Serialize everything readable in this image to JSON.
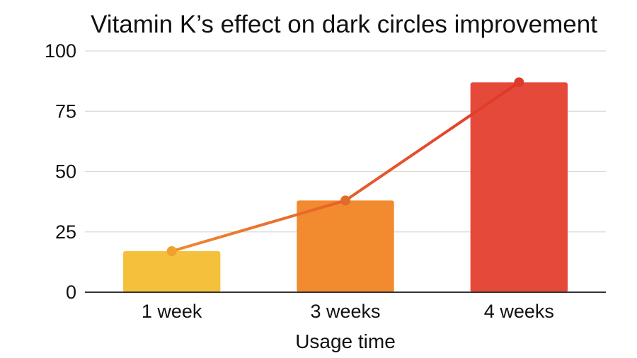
{
  "chart_data": {
    "type": "bar",
    "title": "Vitamin K’s effect on dark circles improvement",
    "xlabel": "Usage time",
    "ylabel": "",
    "categories": [
      "1 week",
      "3 weeks",
      "4 weeks"
    ],
    "values": [
      17,
      38,
      87
    ],
    "overlay_line_values": [
      17,
      38,
      87
    ],
    "ylim": [
      0,
      100
    ],
    "yticks": [
      0,
      25,
      50,
      75,
      100
    ],
    "ytick_labels": [
      "0",
      "25",
      "50",
      "75",
      "100"
    ],
    "grid": true,
    "legend": "none",
    "bar_colors": [
      "#f5c13c",
      "#f28a30",
      "#e5493a"
    ],
    "line_gradient_colors": [
      "#ee8a2e",
      "#e0342a"
    ],
    "marker_colors": [
      "#f0a030",
      "#e46a2c",
      "#dd3a2e"
    ]
  }
}
